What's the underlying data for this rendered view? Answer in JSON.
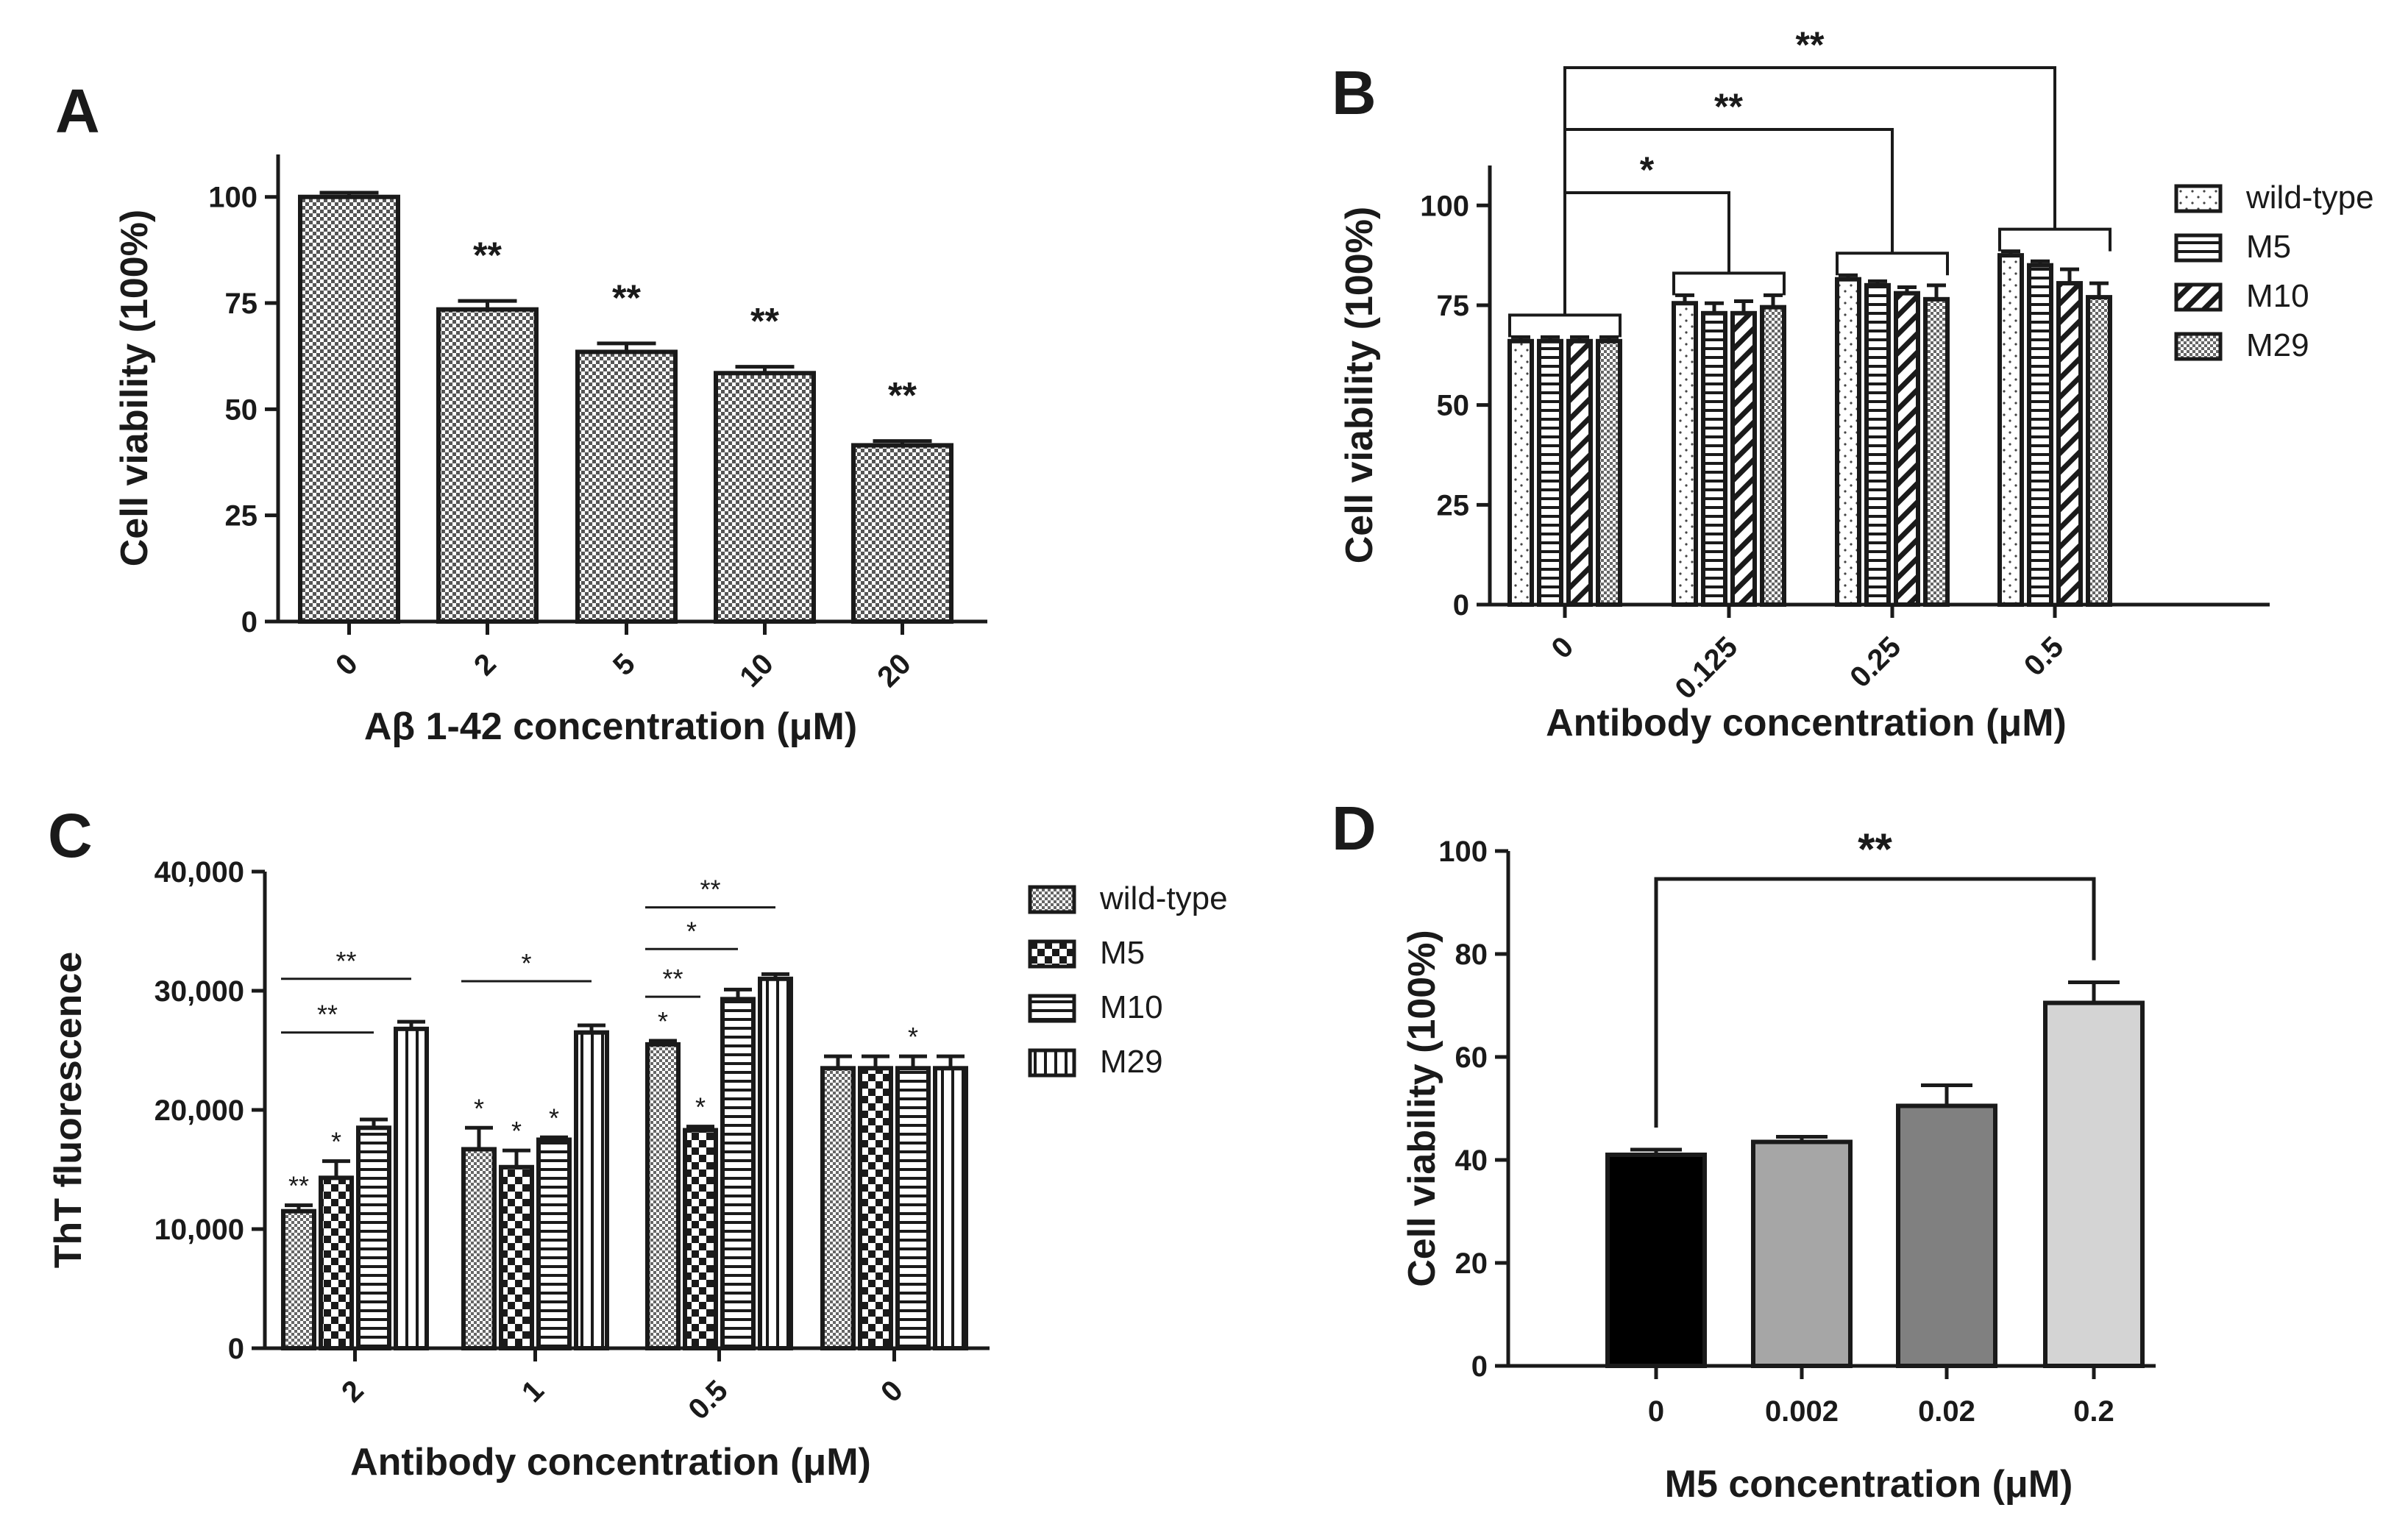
{
  "chart_data": [
    {
      "panel": "A",
      "type": "bar",
      "categories": [
        "0",
        "2",
        "5",
        "10",
        "20"
      ],
      "values": [
        100,
        73.5,
        63.5,
        58.5,
        41.5
      ],
      "errors": [
        1,
        2,
        2,
        1.5,
        1
      ],
      "significance": [
        "",
        "**",
        "**",
        "**",
        "**"
      ],
      "xlabel": "Aβ 1-42 concentration (μM)",
      "ylabel": "Cell viability (100%)",
      "ylim": [
        0,
        110
      ],
      "yticks": [
        "0",
        "25",
        "50",
        "75",
        "100"
      ],
      "grid": false,
      "legend": null
    },
    {
      "panel": "B",
      "type": "bar",
      "categories": [
        "0",
        "0.125",
        "0.25",
        "0.5"
      ],
      "series": [
        {
          "name": "wild-type",
          "values": [
            66,
            75.5,
            81.5,
            87.5
          ],
          "errors": [
            1,
            2,
            1,
            1
          ]
        },
        {
          "name": "M5",
          "values": [
            66,
            73,
            80,
            85
          ],
          "errors": [
            1,
            2.5,
            1,
            1
          ]
        },
        {
          "name": "M10",
          "values": [
            66,
            73,
            78,
            80.5
          ],
          "errors": [
            1,
            3,
            1.5,
            3.5
          ]
        },
        {
          "name": "M29",
          "values": [
            66,
            74.5,
            76.5,
            77
          ],
          "errors": [
            1,
            3,
            3.5,
            3.5
          ]
        }
      ],
      "significance_brackets": [
        {
          "from": "0",
          "to": "0.125",
          "label": "*"
        },
        {
          "from": "0",
          "to": "0.25",
          "label": "**"
        },
        {
          "from": "0",
          "to": "0.5",
          "label": "**"
        }
      ],
      "xlabel": "Antibody concentration (μM)",
      "ylabel": "Cell viability (100%)",
      "ylim": [
        0,
        110
      ],
      "yticks": [
        "0",
        "25",
        "50",
        "75",
        "100"
      ],
      "grid": false,
      "legend": "right"
    },
    {
      "panel": "C",
      "type": "bar",
      "categories": [
        "2",
        "1",
        "0.5",
        "0"
      ],
      "series": [
        {
          "name": "wild-type",
          "values": [
            11500,
            16700,
            25500,
            23500
          ],
          "errors": [
            500,
            1800,
            300,
            1000
          ]
        },
        {
          "name": "M5",
          "values": [
            14300,
            15200,
            18300,
            23500
          ],
          "errors": [
            1400,
            1400,
            300,
            1000
          ]
        },
        {
          "name": "M10",
          "values": [
            18500,
            17500,
            29300,
            23500
          ],
          "errors": [
            700,
            200,
            800,
            1000
          ]
        },
        {
          "name": "M29",
          "values": [
            26800,
            26500,
            31000,
            23500
          ],
          "errors": [
            600,
            600,
            400,
            1000
          ]
        }
      ],
      "bar_significance": [
        [
          "**",
          "*",
          "*",
          ""
        ],
        [
          "*",
          "*",
          "*",
          ""
        ],
        [
          "",
          "*",
          "",
          "*"
        ],
        [
          "",
          "",
          "",
          ""
        ]
      ],
      "significance_lines": [
        {
          "group": "2",
          "from": "wild-type",
          "to": "M29",
          "level": 31000,
          "label": "**"
        },
        {
          "group": "2",
          "from": "wild-type",
          "to": "M10",
          "level": 26500,
          "label": "**"
        },
        {
          "group": "1",
          "from": "wild-type",
          "to": "M29",
          "level": 30800,
          "label": "*"
        },
        {
          "group": "0.5",
          "from": "wild-type",
          "to": "M29",
          "level": 37000,
          "label": "**"
        },
        {
          "group": "0.5",
          "from": "wild-type",
          "to": "M10",
          "level": 33500,
          "label": "*"
        },
        {
          "group": "0.5",
          "from": "wild-type",
          "to": "M5",
          "level": 29500,
          "label": "**"
        }
      ],
      "xlabel": "Antibody concentration (μM)",
      "ylabel": "ThT fluorescence",
      "ylim": [
        0,
        40000
      ],
      "yticks": [
        "0",
        "10,000",
        "20,000",
        "30,000",
        "40,000"
      ],
      "grid": false,
      "legend": "right"
    },
    {
      "panel": "D",
      "type": "bar",
      "categories": [
        "0",
        "0.002",
        "0.02",
        "0.2"
      ],
      "values": [
        41,
        43.5,
        50.5,
        70.5
      ],
      "errors": [
        1,
        1,
        4,
        4
      ],
      "bar_colors": [
        "#000000",
        "#a6a6a6",
        "#808080",
        "#d4d4d4"
      ],
      "significance_brackets": [
        {
          "from": "0",
          "to": "0.2",
          "label": "**"
        }
      ],
      "xlabel": "M5 concentration (μM)",
      "ylabel": "Cell viability (100%)",
      "ylim": [
        0,
        100
      ],
      "yticks": [
        "0",
        "20",
        "40",
        "60",
        "80",
        "100"
      ],
      "grid": false,
      "legend": null
    }
  ]
}
